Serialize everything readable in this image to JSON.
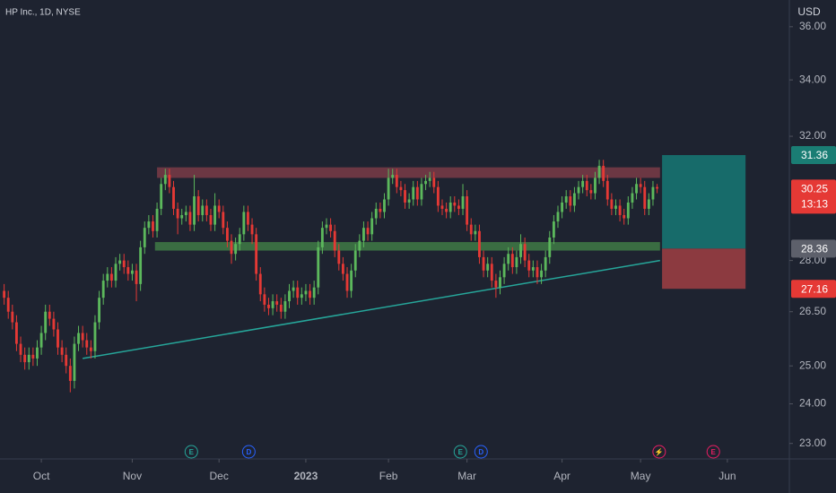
{
  "chart_data": {
    "type": "candlestick",
    "title": "HP Inc., 1D, NYSE",
    "currency": "USD",
    "log_scale": true,
    "up_color": "#5cb85c",
    "down_color": "#e53935",
    "xlim": [
      -1,
      190
    ],
    "ylim": [
      22.62,
      37.05
    ],
    "yticks": [
      {
        "value": 36,
        "label": "36.00"
      },
      {
        "value": 34,
        "label": "34.00"
      },
      {
        "value": 32,
        "label": "32.00"
      },
      {
        "value": 28,
        "label": "28.00"
      },
      {
        "value": 26.5,
        "label": "26.50"
      },
      {
        "value": 25,
        "label": "25.00"
      },
      {
        "value": 24,
        "label": "24.00"
      },
      {
        "value": 23,
        "label": "23.00"
      }
    ],
    "xticks": [
      {
        "value": 9,
        "label": "Oct"
      },
      {
        "value": 31,
        "label": "Nov"
      },
      {
        "value": 52,
        "label": "Dec"
      },
      {
        "value": 73,
        "label": "2023"
      },
      {
        "value": 93,
        "label": "Feb"
      },
      {
        "value": 112,
        "label": "Mar"
      },
      {
        "value": 135,
        "label": "Apr"
      },
      {
        "value": 154,
        "label": "May"
      },
      {
        "value": 175,
        "label": "Jun"
      }
    ],
    "ohlc": [
      [
        27.1,
        27.3,
        26.7,
        26.9
      ],
      [
        26.9,
        27.1,
        26.3,
        26.5
      ],
      [
        26.5,
        26.7,
        26.0,
        26.2
      ],
      [
        26.2,
        26.4,
        25.4,
        25.6
      ],
      [
        25.6,
        25.8,
        25.1,
        25.3
      ],
      [
        25.3,
        25.5,
        24.9,
        25.1
      ],
      [
        25.1,
        25.5,
        24.9,
        25.3
      ],
      [
        25.3,
        25.5,
        25.0,
        25.2
      ],
      [
        25.2,
        25.7,
        25.0,
        25.5
      ],
      [
        25.5,
        26.1,
        25.3,
        25.9
      ],
      [
        25.9,
        26.7,
        25.7,
        26.5
      ],
      [
        26.5,
        26.7,
        26.1,
        26.3
      ],
      [
        26.3,
        26.5,
        25.8,
        26.0
      ],
      [
        26.0,
        26.2,
        25.3,
        25.5
      ],
      [
        25.5,
        25.7,
        25.1,
        25.3
      ],
      [
        25.3,
        25.5,
        24.8,
        25.0
      ],
      [
        25.0,
        25.2,
        24.3,
        24.6
      ],
      [
        24.6,
        25.8,
        24.4,
        25.6
      ],
      [
        25.6,
        26.1,
        25.4,
        25.9
      ],
      [
        25.9,
        26.1,
        25.5,
        25.7
      ],
      [
        25.7,
        25.9,
        25.3,
        25.5
      ],
      [
        25.5,
        25.7,
        25.2,
        25.4
      ],
      [
        25.4,
        26.4,
        25.2,
        26.2
      ],
      [
        26.2,
        27.1,
        26.0,
        26.9
      ],
      [
        26.9,
        27.6,
        26.7,
        27.4
      ],
      [
        27.4,
        27.8,
        27.2,
        27.6
      ],
      [
        27.6,
        27.8,
        27.2,
        27.4
      ],
      [
        27.4,
        28.1,
        27.2,
        27.9
      ],
      [
        27.9,
        28.2,
        27.7,
        28.0
      ],
      [
        28.0,
        28.2,
        27.6,
        27.8
      ],
      [
        27.8,
        28.0,
        27.4,
        27.6
      ],
      [
        27.6,
        27.9,
        27.4,
        27.7
      ],
      [
        27.7,
        27.9,
        26.8,
        27.3
      ],
      [
        27.3,
        28.6,
        27.1,
        28.4
      ],
      [
        28.4,
        29.2,
        28.2,
        29.0
      ],
      [
        29.0,
        29.4,
        28.8,
        29.2
      ],
      [
        29.2,
        29.4,
        28.7,
        28.9
      ],
      [
        28.9,
        29.8,
        28.7,
        29.6
      ],
      [
        29.6,
        30.6,
        29.4,
        30.4
      ],
      [
        30.4,
        30.9,
        30.2,
        30.7
      ],
      [
        30.7,
        30.9,
        30.1,
        30.3
      ],
      [
        30.3,
        30.5,
        29.4,
        29.6
      ],
      [
        29.6,
        29.8,
        28.8,
        29.3
      ],
      [
        29.3,
        29.6,
        29.1,
        29.4
      ],
      [
        29.4,
        29.7,
        29.2,
        29.5
      ],
      [
        29.5,
        29.7,
        28.9,
        29.1
      ],
      [
        29.1,
        30.7,
        28.9,
        30.0
      ],
      [
        30.0,
        30.2,
        29.2,
        29.4
      ],
      [
        29.4,
        29.9,
        29.2,
        29.7
      ],
      [
        29.7,
        29.9,
        29.2,
        29.4
      ],
      [
        29.4,
        29.6,
        28.9,
        29.1
      ],
      [
        29.1,
        30.1,
        28.9,
        29.7
      ],
      [
        29.7,
        29.9,
        29.3,
        29.5
      ],
      [
        29.5,
        29.7,
        28.8,
        29.0
      ],
      [
        29.0,
        29.2,
        28.4,
        28.6
      ],
      [
        28.6,
        28.8,
        27.9,
        28.2
      ],
      [
        28.2,
        28.7,
        28.0,
        28.5
      ],
      [
        28.5,
        29.0,
        28.3,
        28.8
      ],
      [
        28.8,
        29.7,
        28.6,
        29.5
      ],
      [
        29.5,
        29.7,
        28.9,
        29.1
      ],
      [
        29.1,
        29.3,
        28.5,
        28.8
      ],
      [
        28.8,
        29.0,
        27.4,
        27.6
      ],
      [
        27.6,
        27.8,
        26.8,
        27.0
      ],
      [
        27.0,
        27.2,
        26.5,
        26.7
      ],
      [
        26.7,
        26.9,
        26.4,
        26.6
      ],
      [
        26.6,
        27.0,
        26.4,
        26.8
      ],
      [
        26.8,
        27.0,
        26.5,
        26.7
      ],
      [
        26.7,
        26.9,
        26.3,
        26.5
      ],
      [
        26.5,
        27.0,
        26.3,
        26.8
      ],
      [
        26.8,
        27.3,
        26.6,
        27.1
      ],
      [
        27.1,
        27.4,
        26.9,
        27.2
      ],
      [
        27.2,
        27.4,
        26.7,
        26.9
      ],
      [
        26.9,
        27.2,
        26.7,
        27.0
      ],
      [
        27.0,
        27.3,
        26.8,
        27.1
      ],
      [
        27.1,
        27.3,
        26.7,
        26.9
      ],
      [
        26.9,
        27.4,
        26.7,
        27.2
      ],
      [
        27.2,
        28.6,
        27.0,
        28.4
      ],
      [
        28.4,
        29.2,
        28.2,
        29.0
      ],
      [
        29.0,
        29.3,
        28.8,
        29.1
      ],
      [
        29.1,
        29.3,
        28.7,
        28.9
      ],
      [
        28.9,
        29.1,
        28.1,
        28.3
      ],
      [
        28.3,
        28.5,
        27.7,
        27.9
      ],
      [
        27.9,
        28.1,
        27.4,
        27.6
      ],
      [
        27.6,
        27.8,
        26.9,
        27.1
      ],
      [
        27.1,
        27.9,
        26.9,
        27.7
      ],
      [
        27.7,
        28.5,
        27.5,
        28.3
      ],
      [
        28.3,
        28.8,
        28.1,
        28.6
      ],
      [
        28.6,
        29.2,
        28.4,
        29.0
      ],
      [
        29.0,
        29.2,
        28.6,
        28.8
      ],
      [
        28.8,
        29.5,
        28.6,
        29.3
      ],
      [
        29.3,
        29.8,
        29.1,
        29.6
      ],
      [
        29.6,
        29.8,
        29.3,
        29.5
      ],
      [
        29.5,
        30.1,
        29.3,
        29.9
      ],
      [
        29.9,
        30.9,
        29.7,
        30.6
      ],
      [
        30.6,
        30.9,
        30.4,
        30.7
      ],
      [
        30.7,
        30.9,
        30.1,
        30.3
      ],
      [
        30.3,
        30.5,
        30.0,
        30.2
      ],
      [
        30.2,
        30.4,
        29.6,
        29.8
      ],
      [
        29.8,
        30.1,
        29.6,
        29.9
      ],
      [
        29.9,
        30.5,
        29.7,
        30.3
      ],
      [
        30.3,
        30.5,
        29.7,
        29.9
      ],
      [
        29.9,
        30.6,
        29.7,
        30.4
      ],
      [
        30.4,
        30.7,
        30.2,
        30.5
      ],
      [
        30.5,
        30.8,
        30.3,
        30.6
      ],
      [
        30.6,
        30.8,
        30.1,
        30.3
      ],
      [
        30.3,
        30.5,
        29.5,
        29.7
      ],
      [
        29.7,
        29.9,
        29.4,
        29.6
      ],
      [
        29.6,
        29.8,
        29.3,
        29.5
      ],
      [
        29.5,
        30.0,
        29.3,
        29.8
      ],
      [
        29.8,
        30.0,
        29.5,
        29.7
      ],
      [
        29.7,
        29.9,
        29.4,
        29.6
      ],
      [
        29.6,
        30.4,
        29.4,
        30.0
      ],
      [
        30.0,
        30.2,
        28.9,
        29.1
      ],
      [
        29.1,
        29.3,
        28.6,
        28.8
      ],
      [
        28.8,
        29.1,
        28.6,
        28.9
      ],
      [
        28.9,
        29.1,
        27.9,
        28.1
      ],
      [
        28.1,
        28.3,
        27.5,
        27.7
      ],
      [
        27.7,
        28.1,
        27.5,
        27.9
      ],
      [
        27.9,
        28.1,
        27.2,
        27.4
      ],
      [
        27.4,
        27.6,
        26.9,
        27.2
      ],
      [
        27.2,
        27.7,
        27.0,
        27.5
      ],
      [
        27.5,
        28.1,
        27.3,
        27.9
      ],
      [
        27.9,
        28.4,
        27.7,
        28.2
      ],
      [
        28.2,
        28.4,
        27.6,
        27.8
      ],
      [
        27.8,
        28.3,
        27.6,
        28.1
      ],
      [
        28.1,
        28.8,
        27.9,
        28.5
      ],
      [
        28.5,
        28.7,
        27.8,
        28.0
      ],
      [
        28.0,
        28.2,
        27.5,
        27.7
      ],
      [
        27.7,
        28.0,
        27.5,
        27.8
      ],
      [
        27.8,
        28.0,
        27.3,
        27.5
      ],
      [
        27.5,
        27.9,
        27.3,
        27.7
      ],
      [
        27.7,
        28.3,
        27.5,
        28.1
      ],
      [
        28.1,
        28.9,
        27.9,
        28.7
      ],
      [
        28.7,
        29.4,
        28.5,
        29.2
      ],
      [
        29.2,
        29.7,
        29.0,
        29.5
      ],
      [
        29.5,
        30.0,
        29.3,
        29.8
      ],
      [
        29.8,
        30.2,
        29.6,
        30.0
      ],
      [
        30.0,
        30.2,
        29.5,
        29.7
      ],
      [
        29.7,
        30.3,
        29.5,
        30.1
      ],
      [
        30.1,
        30.5,
        29.9,
        30.3
      ],
      [
        30.3,
        30.7,
        30.1,
        30.5
      ],
      [
        30.5,
        30.7,
        30.0,
        30.2
      ],
      [
        30.2,
        30.4,
        29.9,
        30.1
      ],
      [
        30.1,
        30.8,
        29.9,
        30.6
      ],
      [
        30.6,
        31.2,
        30.4,
        31.0
      ],
      [
        31.0,
        31.2,
        30.3,
        30.5
      ],
      [
        30.5,
        30.7,
        29.7,
        29.9
      ],
      [
        29.9,
        30.1,
        29.4,
        29.6
      ],
      [
        29.6,
        29.9,
        29.4,
        29.7
      ],
      [
        29.7,
        29.9,
        29.2,
        29.4
      ],
      [
        29.4,
        29.6,
        29.1,
        29.3
      ],
      [
        29.3,
        30.0,
        29.1,
        29.8
      ],
      [
        29.8,
        30.3,
        29.6,
        30.1
      ],
      [
        30.1,
        30.6,
        29.9,
        30.4
      ],
      [
        30.4,
        30.6,
        30.1,
        30.3
      ],
      [
        30.3,
        30.5,
        29.4,
        29.6
      ],
      [
        29.6,
        30.1,
        29.4,
        29.9
      ],
      [
        29.9,
        30.5,
        29.7,
        30.3
      ],
      [
        30.3,
        30.4,
        30.1,
        30.25
      ]
    ],
    "zones": [
      {
        "from": 30.6,
        "to": 30.95,
        "start": 37,
        "end": 158.7,
        "color": "#7a3b47"
      },
      {
        "from": 28.3,
        "to": 28.56,
        "start": 36.5,
        "end": 158.7,
        "color": "#3f7a45"
      }
    ],
    "trendline": {
      "x": [
        19,
        158.7
      ],
      "y": [
        25.2,
        28.0
      ],
      "color": "#26a69a"
    },
    "position": {
      "target": 31.36,
      "entry": 28.36,
      "stop": 27.16,
      "start": 159.2,
      "end": 179.4,
      "target_color": "#176b6a",
      "stop_color": "#8c3a40"
    },
    "countdown": "13:13",
    "events": [
      {
        "label": "E",
        "x": 45.3
      },
      {
        "label": "D",
        "x": 59.2
      },
      {
        "label": "E",
        "x": 110.4
      },
      {
        "label": "D",
        "x": 115.4
      },
      {
        "label": "⚡",
        "x": 158.5
      },
      {
        "label": "E",
        "x": 171.6
      }
    ]
  }
}
